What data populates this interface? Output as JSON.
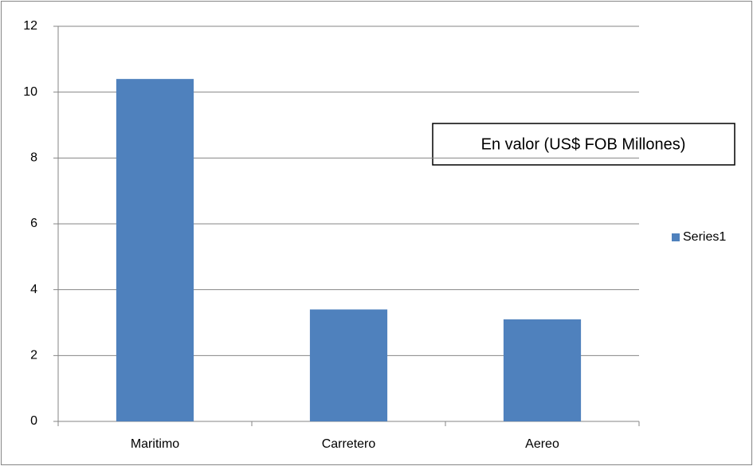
{
  "chart_data": {
    "type": "bar",
    "annotation": "En valor (US$ FOB Millones)",
    "categories": [
      "Maritimo",
      "Carretero",
      "Aereo"
    ],
    "series": [
      {
        "name": "Series1",
        "color": "#4f81bd",
        "values": [
          10.4,
          3.4,
          3.1
        ]
      }
    ],
    "ylim": [
      0,
      12
    ],
    "yticks": [
      0,
      2,
      4,
      6,
      8,
      10,
      12
    ],
    "grid": true,
    "legend": "right"
  }
}
